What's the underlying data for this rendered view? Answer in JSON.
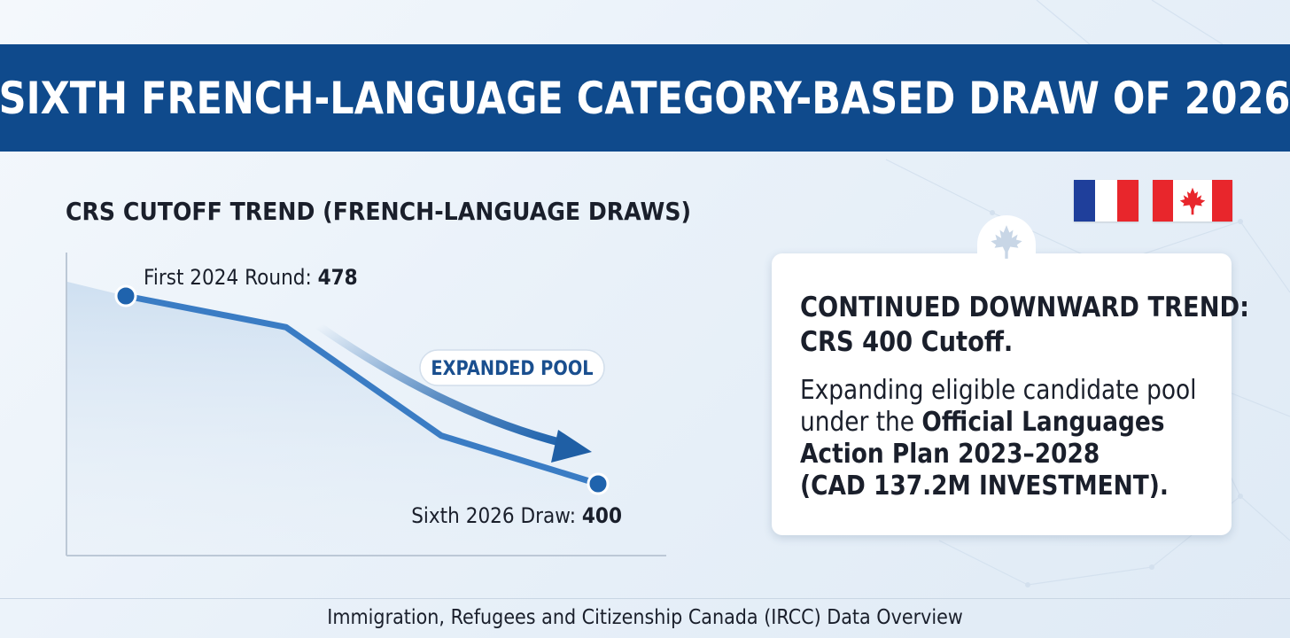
{
  "header": {
    "title": "SIXTH FRENCH-LANGUAGE CATEGORY-BASED DRAW OF 2026"
  },
  "chart_data": {
    "type": "line",
    "title": "CRS CUTOFF TREND (FRENCH-LANGUAGE DRAWS)",
    "x": [
      "First 2024 Round",
      "",
      "",
      "Sixth 2026 Draw"
    ],
    "series": [
      {
        "values": [
          478,
          465,
          420,
          400
        ]
      }
    ],
    "ylabel": "",
    "xlabel": "",
    "point_labels": [
      {
        "label": "First 2024 Round: ",
        "value": "478"
      },
      {
        "label": "Sixth 2026 Draw: ",
        "value": "400"
      }
    ],
    "annotation": "EXPANDED POOL",
    "line_color": "#3a7cc4",
    "marker_color": "#1f63ad"
  },
  "flags": [
    "france-flag",
    "canada-flag"
  ],
  "card": {
    "icon": "maple-leaf-icon",
    "heading_line1": "CONTINUED DOWNWARD TREND:",
    "heading_line2": "CRS 400 Cutoff.",
    "body_line1": "Expanding eligible candidate pool",
    "body_line2_pre": "under the ",
    "body_line2_bold": "Official Languages",
    "body_line3": "Action Plan 2023–2028",
    "body_line4": "(CAD 137.2M INVESTMENT)."
  },
  "footer": {
    "source": "Immigration, Refugees and Citizenship Canada (IRCC) Data Overview"
  },
  "colors": {
    "banner": "#0f4a8c",
    "accent": "#1f63ad",
    "canada_red": "#e8262c",
    "france_blue": "#1f3f9b"
  }
}
